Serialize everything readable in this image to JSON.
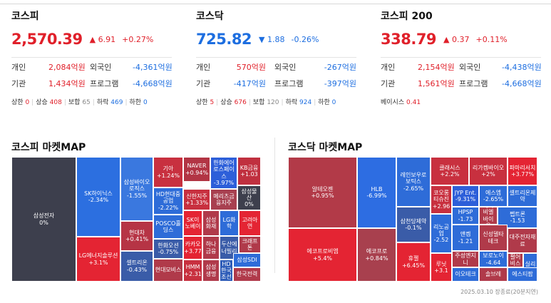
{
  "panels": [
    {
      "title": "코스피",
      "value": "2,570.39",
      "arrow": "▲",
      "change": "6.91",
      "pct": "+0.27%",
      "dir": "up",
      "rows": [
        {
          "l1": "개인",
          "v1": "2,084억원",
          "d1": "up",
          "l2": "외국인",
          "v2": "-4,361억원",
          "d2": "down"
        },
        {
          "l1": "기관",
          "v1": "1,434억원",
          "d1": "up",
          "l2": "프로그램",
          "v2": "-4,668억원",
          "d2": "down"
        }
      ],
      "stats": [
        {
          "label": "상한",
          "value": "0",
          "dir": "up"
        },
        {
          "label": "상승",
          "value": "408",
          "dir": "up"
        },
        {
          "label": "보합",
          "value": "65",
          "dir": "gray"
        },
        {
          "label": "하락",
          "value": "469",
          "dir": "down"
        },
        {
          "label": "하한",
          "value": "0",
          "dir": "down"
        }
      ]
    },
    {
      "title": "코스닥",
      "value": "725.82",
      "arrow": "▼",
      "change": "1.88",
      "pct": "-0.26%",
      "dir": "down",
      "rows": [
        {
          "l1": "개인",
          "v1": "570억원",
          "d1": "up",
          "l2": "외국인",
          "v2": "-267억원",
          "d2": "down"
        },
        {
          "l1": "기관",
          "v1": "-417억원",
          "d1": "down",
          "l2": "프로그램",
          "v2": "-397억원",
          "d2": "down"
        }
      ],
      "stats": [
        {
          "label": "상한",
          "value": "5",
          "dir": "up"
        },
        {
          "label": "상승",
          "value": "676",
          "dir": "up"
        },
        {
          "label": "보합",
          "value": "120",
          "dir": "gray"
        },
        {
          "label": "하락",
          "value": "924",
          "dir": "down"
        },
        {
          "label": "하한",
          "value": "0",
          "dir": "down"
        }
      ]
    },
    {
      "title": "코스피 200",
      "value": "338.79",
      "arrow": "▲",
      "change": "0.37",
      "pct": "+0.11%",
      "dir": "up",
      "rows": [
        {
          "l1": "개인",
          "v1": "2,154억원",
          "d1": "up",
          "l2": "외국인",
          "v2": "-4,438억원",
          "d2": "down"
        },
        {
          "l1": "기관",
          "v1": "1,561억원",
          "d1": "up",
          "l2": "프로그램",
          "v2": "-4,668억원",
          "d2": "down"
        }
      ],
      "stats": [
        {
          "label": "베이시스",
          "value": "0.41",
          "dir": "up"
        }
      ]
    }
  ],
  "maps": {
    "kospi": {
      "title": "코스피 마켓MAP",
      "tiles": [
        {
          "name": "삼성전자",
          "pct": "0%",
          "color": "#3d3f4d"
        },
        {
          "name": "SK하이닉스",
          "pct": "-2.34%",
          "color": "#2c6fe0"
        },
        {
          "name": "LG에너지솔루션",
          "pct": "+3.1%",
          "color": "#e42433"
        },
        {
          "name": "삼성바이오로직스",
          "pct": "-1.55%",
          "color": "#3a78df"
        },
        {
          "name": "현대차",
          "pct": "+0.41%",
          "color": "#b63445"
        },
        {
          "name": "셀트리온",
          "pct": "-0.43%",
          "color": "#3a5ca8"
        },
        {
          "name": "기아",
          "pct": "+1.24%",
          "color": "#c8303f"
        },
        {
          "name": "HD현대중공업",
          "pct": "-2.22%",
          "color": "#2e6cd8"
        },
        {
          "name": "POSCO홀딩스",
          "pct": "",
          "color": "#2e6cd8"
        },
        {
          "name": "현대모비스",
          "pct": "",
          "color": "#b03a4a"
        },
        {
          "name": "NAVER",
          "pct": "+0.94%",
          "color": "#b23544"
        },
        {
          "name": "한화에어로스페이스",
          "pct": "-3.97%",
          "color": "#2d5fd9"
        },
        {
          "name": "KB금융",
          "pct": "+1.03",
          "color": "#c0303f"
        },
        {
          "name": "신한지주",
          "pct": "+1.33%",
          "color": "#c8303f"
        },
        {
          "name": "메리츠금융지주",
          "pct": "",
          "color": "#a84050"
        },
        {
          "name": "삼성물산",
          "pct": "0%",
          "color": "#3d3f4d"
        },
        {
          "name": "SK이노베이",
          "pct": "",
          "color": "#e42433"
        },
        {
          "name": "삼성화재",
          "pct": "",
          "color": "#b03a4a"
        },
        {
          "name": "LG화학",
          "pct": "",
          "color": "#2e6cd8"
        },
        {
          "name": "고려아연",
          "pct": "",
          "color": "#e42433"
        },
        {
          "name": "한화오션",
          "pct": "-0.75%",
          "color": "#3a5ca8"
        },
        {
          "name": "카카오",
          "pct": "+3.77",
          "color": "#e42433"
        },
        {
          "name": "하나금융",
          "pct": "",
          "color": "#b03a4a"
        },
        {
          "name": "두산에너빌리",
          "pct": "",
          "color": "#3a5ca8"
        },
        {
          "name": "크래프톤",
          "pct": "",
          "color": "#b03a4a"
        },
        {
          "name": "HMM",
          "pct": "+2.31",
          "color": "#c8303f"
        },
        {
          "name": "삼성생명",
          "pct": "",
          "color": "#b03a4a"
        },
        {
          "name": "HD한국조선",
          "pct": "",
          "color": "#2e5cb8"
        },
        {
          "name": "삼성SDI",
          "pct": "",
          "color": "#2e6cd8"
        },
        {
          "name": "한국전력",
          "pct": "",
          "color": "#b03a4a"
        }
      ]
    },
    "kosdaq": {
      "title": "코스닥 마켓MAP",
      "tiles": [
        {
          "name": "알테오젠",
          "pct": "+0.95%",
          "color": "#b23a48"
        },
        {
          "name": "에코프로비엠",
          "pct": "+5.4%",
          "color": "#e42433"
        },
        {
          "name": "HLB",
          "pct": "-6.99%",
          "color": "#2d6de2"
        },
        {
          "name": "에코프로",
          "pct": "+0.84%",
          "color": "#a8404e"
        },
        {
          "name": "레인보우로보틱스",
          "pct": "-2.65%",
          "color": "#2e6cd8"
        },
        {
          "name": "삼천당제약",
          "pct": "-0.1%",
          "color": "#3a5ca8"
        },
        {
          "name": "휴젤",
          "pct": "+6.45%",
          "color": "#e42433"
        },
        {
          "name": "클래시스",
          "pct": "+2.2%",
          "color": "#c8303f"
        },
        {
          "name": "리가켐바이오",
          "pct": "+2%",
          "color": "#c8303f"
        },
        {
          "name": "파마리서치",
          "pct": "+3.77%",
          "color": "#e42433"
        },
        {
          "name": "코오롱티슈진",
          "pct": "+2.96",
          "color": "#c8303f"
        },
        {
          "name": "JYP Ent.",
          "pct": "-9.31%",
          "color": "#2d5fd9"
        },
        {
          "name": "에스엠",
          "pct": "-2.65%",
          "color": "#2e6cd8"
        },
        {
          "name": "셀트리온제약",
          "pct": "",
          "color": "#2e6cd8"
        },
        {
          "name": "리노공업",
          "pct": "-2.52",
          "color": "#2e6cd8"
        },
        {
          "name": "HPSP",
          "pct": "-1.73",
          "color": "#2e6cd8"
        },
        {
          "name": "에이비엘바이오",
          "pct": "",
          "color": "#b03a4a"
        },
        {
          "name": "펩트론",
          "pct": "-1.53",
          "color": "#2e6cd8"
        },
        {
          "name": "앤켐",
          "pct": "-1.21",
          "color": "#2e6cd8"
        },
        {
          "name": "신성델타테크",
          "pct": "",
          "color": "#b03a4a"
        },
        {
          "name": "대주전자재료",
          "pct": "",
          "color": "#b03a4a"
        },
        {
          "name": "루닛",
          "pct": "+3.1",
          "color": "#e42433"
        },
        {
          "name": "주성엔지니",
          "pct": "",
          "color": "#b03a4a"
        },
        {
          "name": "보로노이",
          "pct": "-4.64",
          "color": "#2e6cd8"
        },
        {
          "name": "펄어비스",
          "pct": "",
          "color": "#b03a4a"
        },
        {
          "name": "솔브레",
          "pct": "",
          "color": "#b03a4a"
        },
        {
          "name": "이오테크",
          "pct": "",
          "color": "#2e6cd8"
        },
        {
          "name": "실리콘투",
          "pct": "",
          "color": "#2e6cd8"
        },
        {
          "name": "펨벡스",
          "pct": "",
          "color": "#2e6cd8"
        },
        {
          "name": "에스티팜",
          "pct": "",
          "color": "#2e6cd8"
        }
      ]
    }
  },
  "footer": "2025.03.10 장종료(20분지연)"
}
